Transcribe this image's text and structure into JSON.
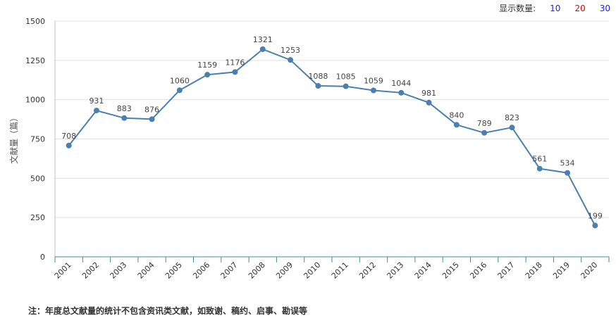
{
  "controls": {
    "label": "显示数量:",
    "options": [
      {
        "label": "10",
        "color": "#1a1aff"
      },
      {
        "label": "20",
        "color": "#e00000"
      },
      {
        "label": "30",
        "color": "#1a1aff"
      }
    ]
  },
  "chart_data": {
    "type": "line",
    "ylabel": "文献量（篇）",
    "ylim": [
      0,
      1500
    ],
    "yticks": [
      0,
      250,
      500,
      750,
      1000,
      1250,
      1500
    ],
    "categories": [
      "2001",
      "2002",
      "2003",
      "2004",
      "2005",
      "2006",
      "2007",
      "2008",
      "2009",
      "2010",
      "2011",
      "2012",
      "2013",
      "2014",
      "2015",
      "2016",
      "2017",
      "2018",
      "2019",
      "2020"
    ],
    "values": [
      708,
      931,
      883,
      876,
      1060,
      1159,
      1176,
      1321,
      1253,
      1088,
      1085,
      1059,
      1044,
      981,
      840,
      789,
      823,
      561,
      534,
      199
    ],
    "line_color": "#4a7fb0",
    "grid": true,
    "legend": "none"
  },
  "footnote": "注：年度总文献量的统计不包含资讯类文献，如致谢、稿约、启事、勘误等"
}
